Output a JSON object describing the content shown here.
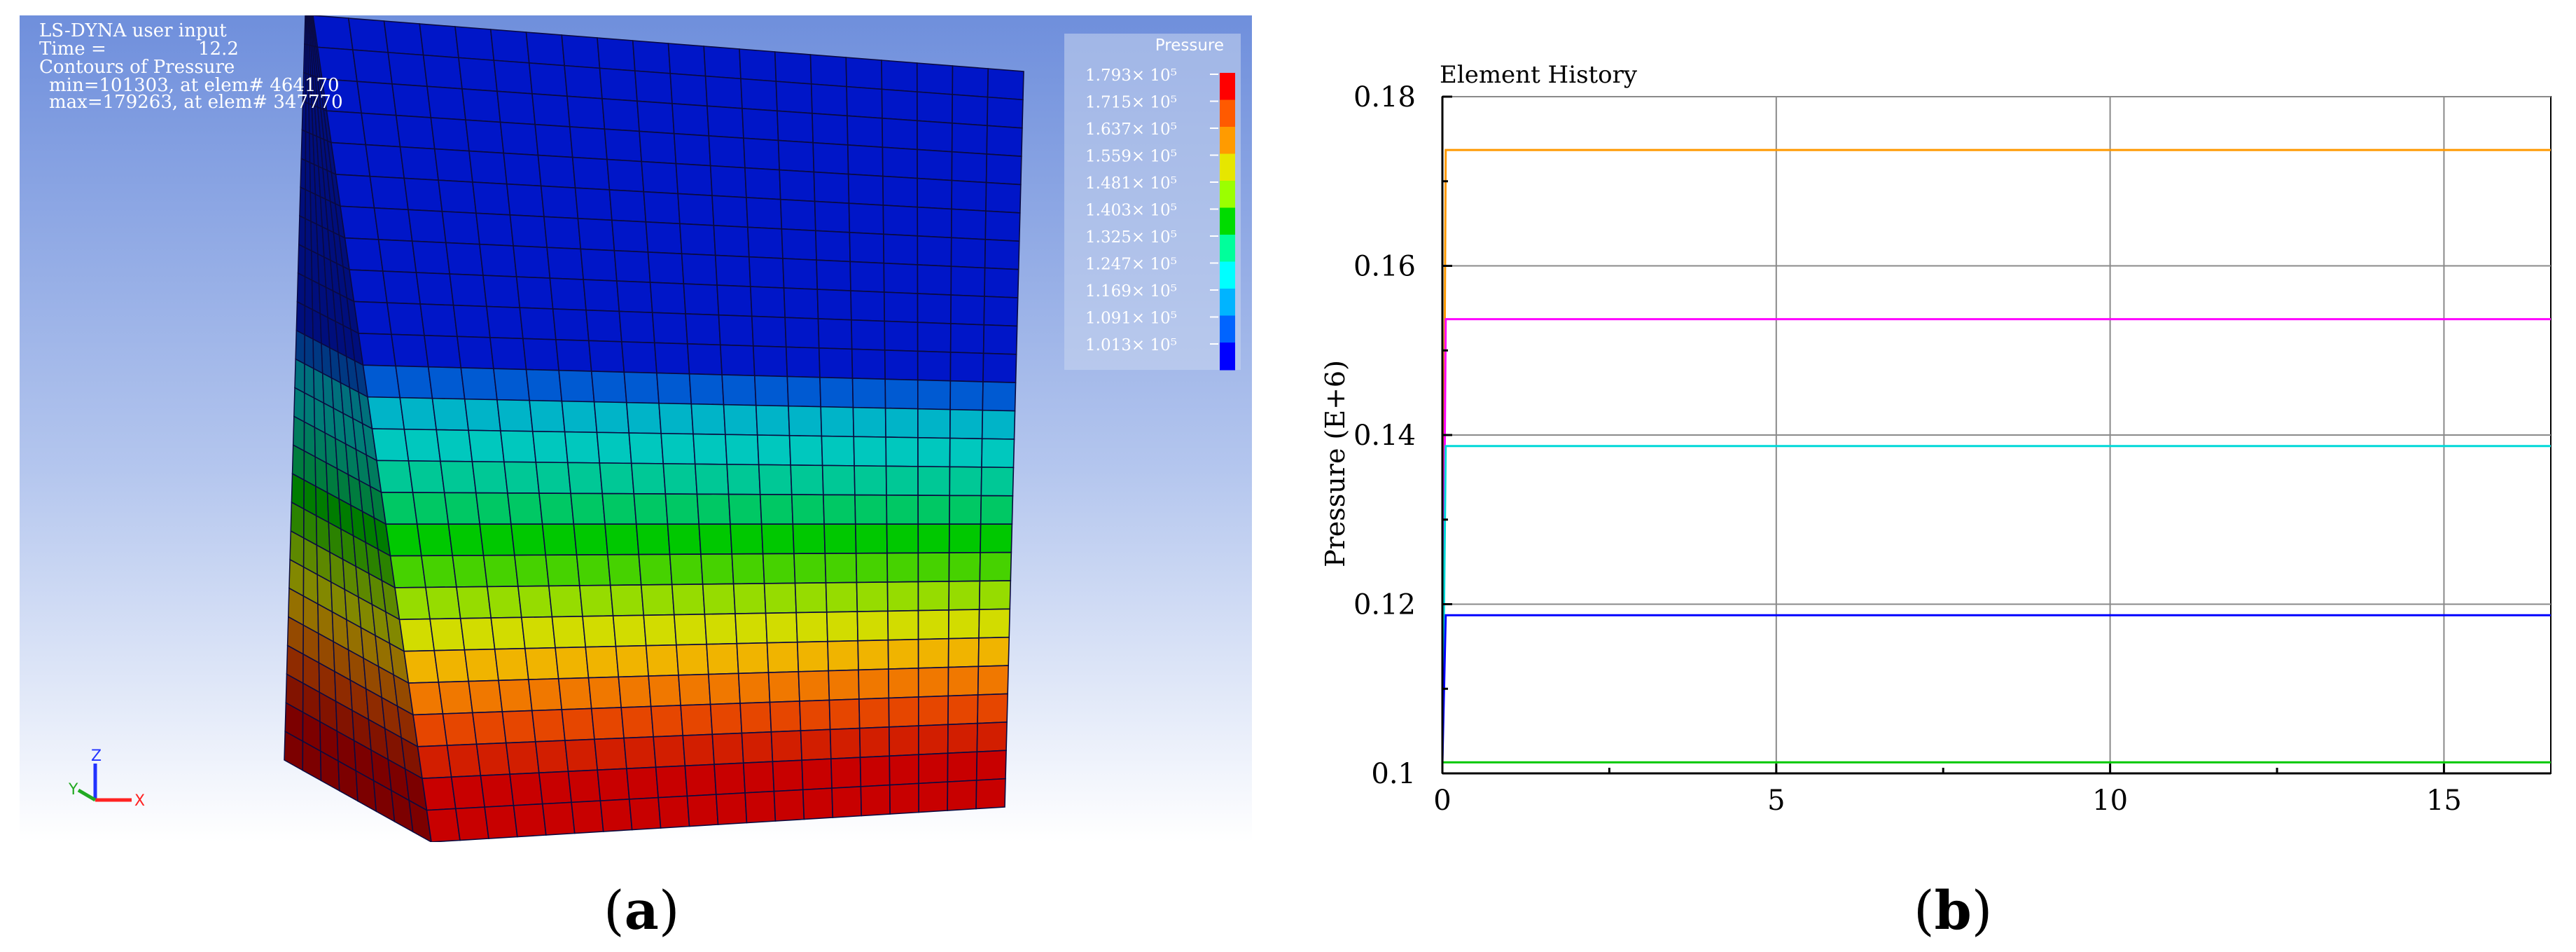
{
  "panel_a": {
    "header": {
      "title": "LS-DYNA user input",
      "time_label": "Time =",
      "time_value": "12.2",
      "subtitle": "Contours of Pressure",
      "min_line": "min=101303, at elem# 464170",
      "max_line": "max=179263, at elem# 347770"
    },
    "legend": {
      "title": "Pressure",
      "labels": [
        "1.793× 10⁵",
        "1.715× 10⁵",
        "1.637× 10⁵",
        "1.559× 10⁵",
        "1.481× 10⁵",
        "1.403× 10⁵",
        "1.325× 10⁵",
        "1.247× 10⁵",
        "1.169× 10⁵",
        "1.091× 10⁵",
        "1.013× 10⁵"
      ],
      "colors": [
        "#ff0000",
        "#ff5a00",
        "#ff9b00",
        "#e6e600",
        "#9bff00",
        "#00dc00",
        "#00ff9b",
        "#00ffff",
        "#00b4ff",
        "#0064ff",
        "#0000ff"
      ]
    },
    "triad": {
      "z": "Z",
      "y": "Y",
      "x": "X"
    },
    "caption": {
      "open": "(",
      "letter": "a",
      "close": ")"
    }
  },
  "panel_b": {
    "caption": {
      "open": "(",
      "letter": "b",
      "close": ")"
    }
  },
  "chart_data": {
    "type": "line",
    "title": "Element History",
    "xlabel": "",
    "ylabel": "Pressure (E+6)",
    "xlim": [
      0,
      16.6
    ],
    "ylim": [
      0.1,
      0.18
    ],
    "xticks": [
      0,
      5,
      10,
      15
    ],
    "xtick_labels": [
      "0",
      "5",
      "10",
      "15"
    ],
    "yticks": [
      0.1,
      0.12,
      0.14,
      0.16,
      0.18
    ],
    "ytick_labels": [
      "0.1",
      "0.12",
      "0.14",
      "0.16",
      "0.18"
    ],
    "grid": true,
    "series": [
      {
        "color": "#ff9900",
        "x": [
          0,
          0.05,
          16.6
        ],
        "y": [
          0.1013,
          0.1737,
          0.1737
        ]
      },
      {
        "color": "#ff00ff",
        "x": [
          0,
          0.05,
          16.6
        ],
        "y": [
          0.1013,
          0.1537,
          0.1537
        ]
      },
      {
        "color": "#00d8d8",
        "x": [
          0,
          0.05,
          16.6
        ],
        "y": [
          0.1013,
          0.1387,
          0.1387
        ]
      },
      {
        "color": "#0000ff",
        "x": [
          0,
          0.05,
          16.6
        ],
        "y": [
          0.1013,
          0.1187,
          0.1187
        ]
      },
      {
        "color": "#00c800",
        "x": [
          0,
          0.05,
          16.6
        ],
        "y": [
          0.1013,
          0.1013,
          0.1013
        ]
      }
    ]
  }
}
